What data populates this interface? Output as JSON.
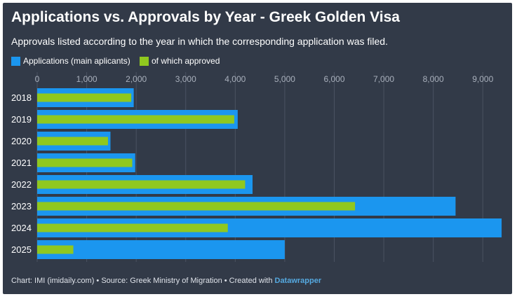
{
  "header": {
    "title": "Applications vs. Approvals by Year - Greek Golden Visa",
    "subtitle": "Approvals listed according to the year in which the corresponding application was filed."
  },
  "legend": {
    "applications": "Applications (main aplicants)",
    "approved": "of which approved"
  },
  "colors": {
    "applications": "#1b96ef",
    "approved": "#90c81f",
    "background": "#323a48",
    "grid": "#4a5262",
    "text": "#ffffff",
    "tick": "#a9b0bc"
  },
  "chart_data": {
    "type": "bar",
    "orientation": "horizontal",
    "categories": [
      "2018",
      "2019",
      "2020",
      "2021",
      "2022",
      "2023",
      "2024",
      "2025"
    ],
    "series": [
      {
        "name": "Applications (main aplicants)",
        "values": [
          1950,
          4050,
          1480,
          1980,
          4350,
          8450,
          9380,
          5000
        ]
      },
      {
        "name": "of which approved",
        "values": [
          1900,
          3980,
          1430,
          1920,
          4200,
          6420,
          3850,
          730
        ]
      }
    ],
    "x_ticks": [
      "0",
      "1,000",
      "2,000",
      "3,000",
      "4,000",
      "5,000",
      "6,000",
      "7,000",
      "8,000",
      "9,000"
    ],
    "x_tick_values": [
      0,
      1000,
      2000,
      3000,
      4000,
      5000,
      6000,
      7000,
      8000,
      9000
    ],
    "xlim": [
      0,
      9450
    ],
    "grid": true,
    "legend_position": "top-left"
  },
  "footer": {
    "text": "Chart: IMI (imidaily.com) • Source: Greek Ministry of Migration • Created with ",
    "link": "Datawrapper"
  }
}
